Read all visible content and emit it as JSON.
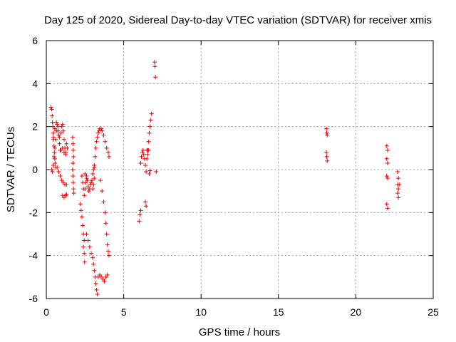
{
  "chart_data": {
    "type": "scatter",
    "title": "Day 125 of 2020, Sidereal Day-to-day VTEC variation (SDTVAR) for receiver xmis",
    "xlabel": "GPS time / hours",
    "ylabel": "SDTVAR / TECUs",
    "xlim": [
      0,
      25
    ],
    "ylim": [
      -6,
      6
    ],
    "xticks": [
      0,
      5,
      10,
      15,
      20,
      25
    ],
    "yticks": [
      -6,
      -4,
      -2,
      0,
      2,
      4,
      6
    ],
    "xtick_labels": [
      "0",
      "5",
      "10",
      "15",
      "20",
      "25"
    ],
    "ytick_labels": [
      "-6",
      "-4",
      "-2",
      "0",
      "2",
      "4",
      "6"
    ],
    "grid": true,
    "marker": "plus",
    "color": "#ee0000",
    "series": [
      {
        "name": "SDTVAR xmis",
        "points": [
          [
            0.3,
            2.9
          ],
          [
            0.35,
            2.8
          ],
          [
            0.38,
            2.5
          ],
          [
            0.4,
            2.2
          ],
          [
            0.42,
            2.0
          ],
          [
            0.45,
            1.7
          ],
          [
            0.47,
            1.4
          ],
          [
            0.5,
            1.1
          ],
          [
            0.52,
            0.8
          ],
          [
            0.55,
            0.5
          ],
          [
            0.57,
            0.3
          ],
          [
            0.6,
            0.1
          ],
          [
            0.35,
            0.0
          ],
          [
            0.4,
            -0.1
          ],
          [
            0.45,
            0.2
          ],
          [
            0.5,
            0.6
          ],
          [
            0.55,
            1.0
          ],
          [
            0.6,
            1.4
          ],
          [
            0.65,
            1.8
          ],
          [
            0.7,
            2.1
          ],
          [
            0.75,
            2.0
          ],
          [
            0.8,
            1.6
          ],
          [
            0.85,
            1.2
          ],
          [
            0.9,
            0.9
          ],
          [
            0.45,
            1.5
          ],
          [
            0.55,
            1.9
          ],
          [
            0.65,
            2.2
          ],
          [
            0.75,
            1.8
          ],
          [
            0.85,
            1.5
          ],
          [
            0.95,
            1.7
          ],
          [
            1.0,
            2.0
          ],
          [
            1.05,
            2.1
          ],
          [
            1.1,
            1.8
          ],
          [
            1.15,
            1.4
          ],
          [
            1.2,
            1.0
          ],
          [
            1.25,
            0.8
          ],
          [
            0.7,
            0.1
          ],
          [
            0.8,
            -0.1
          ],
          [
            0.9,
            -0.3
          ],
          [
            1.0,
            -0.5
          ],
          [
            1.1,
            -0.6
          ],
          [
            1.2,
            -0.7
          ],
          [
            1.3,
            -0.7
          ],
          [
            1.05,
            -1.2
          ],
          [
            1.15,
            -1.3
          ],
          [
            1.25,
            -1.2
          ],
          [
            1.3,
            -1.15
          ],
          [
            0.95,
            0.9
          ],
          [
            1.05,
            1.0
          ],
          [
            1.15,
            0.8
          ],
          [
            1.25,
            0.7
          ],
          [
            1.3,
            1.2
          ],
          [
            1.35,
            1.0
          ],
          [
            1.7,
            1.5
          ],
          [
            1.72,
            1.2
          ],
          [
            1.74,
            0.9
          ],
          [
            1.76,
            0.6
          ],
          [
            1.72,
            0.3
          ],
          [
            1.7,
            0.0
          ],
          [
            1.72,
            -0.3
          ],
          [
            1.74,
            -0.6
          ],
          [
            1.76,
            -0.9
          ],
          [
            1.78,
            -1.1
          ],
          [
            2.2,
            -1.6
          ],
          [
            2.25,
            -1.9
          ],
          [
            2.3,
            -2.2
          ],
          [
            2.35,
            -2.6
          ],
          [
            2.4,
            -3.0
          ],
          [
            2.45,
            -3.3
          ],
          [
            2.4,
            -3.6
          ],
          [
            2.45,
            -3.9
          ],
          [
            2.48,
            -4.3
          ],
          [
            2.3,
            -0.3
          ],
          [
            2.35,
            -0.6
          ],
          [
            2.4,
            -0.9
          ],
          [
            2.45,
            -1.2
          ],
          [
            2.5,
            -0.9
          ],
          [
            2.55,
            -0.6
          ],
          [
            2.6,
            -0.3
          ],
          [
            2.65,
            -0.5
          ],
          [
            2.7,
            -0.8
          ],
          [
            2.75,
            -1.0
          ],
          [
            2.8,
            -0.9
          ],
          [
            2.85,
            -0.7
          ],
          [
            2.9,
            -0.6
          ],
          [
            2.95,
            -0.5
          ],
          [
            3.0,
            -0.2
          ],
          [
            3.05,
            0.0
          ],
          [
            3.1,
            0.1
          ],
          [
            3.0,
            -0.9
          ],
          [
            3.05,
            -0.7
          ],
          [
            3.1,
            -0.4
          ],
          [
            2.5,
            -0.2
          ],
          [
            2.6,
            -0.4
          ],
          [
            2.6,
            -3.0
          ],
          [
            2.7,
            -3.3
          ],
          [
            2.8,
            -3.6
          ],
          [
            2.9,
            -3.9
          ],
          [
            3.0,
            -4.1
          ],
          [
            3.05,
            -4.4
          ],
          [
            3.1,
            -4.7
          ],
          [
            3.15,
            -5.0
          ],
          [
            3.2,
            -5.3
          ],
          [
            3.25,
            -5.6
          ],
          [
            3.3,
            -5.8
          ],
          [
            3.35,
            -5.0
          ],
          [
            3.45,
            -4.9
          ],
          [
            3.55,
            -5.0
          ],
          [
            3.65,
            -5.1
          ],
          [
            3.75,
            -5.2
          ],
          [
            3.85,
            -5.0
          ],
          [
            3.95,
            -4.9
          ],
          [
            3.1,
            0.2
          ],
          [
            3.15,
            0.6
          ],
          [
            3.2,
            1.0
          ],
          [
            3.25,
            1.3
          ],
          [
            3.3,
            1.5
          ],
          [
            3.35,
            1.7
          ],
          [
            3.4,
            1.8
          ],
          [
            3.45,
            1.9
          ],
          [
            3.55,
            1.9
          ],
          [
            3.6,
            1.8
          ],
          [
            3.7,
            1.6
          ],
          [
            3.8,
            1.3
          ],
          [
            3.9,
            1.0
          ],
          [
            4.0,
            0.8
          ],
          [
            4.05,
            0.6
          ],
          [
            3.5,
            -0.5
          ],
          [
            3.6,
            -1.0
          ],
          [
            3.7,
            -1.5
          ],
          [
            3.8,
            -2.0
          ],
          [
            3.85,
            -2.5
          ],
          [
            3.9,
            -3.0
          ],
          [
            3.95,
            -3.5
          ],
          [
            4.0,
            -3.8
          ],
          [
            4.05,
            -4.0
          ],
          [
            6.0,
            -2.4
          ],
          [
            6.05,
            -2.1
          ],
          [
            6.1,
            -1.9
          ],
          [
            6.1,
            0.3
          ],
          [
            6.15,
            0.6
          ],
          [
            6.2,
            0.8
          ],
          [
            6.25,
            0.9
          ],
          [
            6.3,
            0.7
          ],
          [
            6.35,
            0.5
          ],
          [
            6.4,
            0.2
          ],
          [
            6.45,
            -0.1
          ],
          [
            6.5,
            0.5
          ],
          [
            6.55,
            0.9
          ],
          [
            6.6,
            1.3
          ],
          [
            6.65,
            1.7
          ],
          [
            6.7,
            2.0
          ],
          [
            6.75,
            2.3
          ],
          [
            6.8,
            2.6
          ],
          [
            6.5,
            0.9
          ],
          [
            6.55,
            0.7
          ],
          [
            6.6,
            0.9
          ],
          [
            6.65,
            -0.2
          ],
          [
            6.7,
            -0.05
          ],
          [
            6.4,
            -1.5
          ],
          [
            6.45,
            -1.7
          ],
          [
            7.0,
            5.0
          ],
          [
            7.02,
            4.8
          ],
          [
            7.05,
            4.3
          ],
          [
            7.1,
            -0.1
          ],
          [
            18.1,
            1.9
          ],
          [
            18.12,
            1.7
          ],
          [
            18.15,
            1.6
          ],
          [
            18.1,
            0.8
          ],
          [
            18.12,
            0.6
          ],
          [
            18.15,
            0.4
          ],
          [
            22.0,
            1.1
          ],
          [
            22.05,
            0.9
          ],
          [
            22.0,
            0.5
          ],
          [
            22.05,
            0.3
          ],
          [
            22.0,
            -0.3
          ],
          [
            22.05,
            -0.4
          ],
          [
            22.0,
            -1.6
          ],
          [
            22.05,
            -1.8
          ],
          [
            22.7,
            -0.1
          ],
          [
            22.75,
            -0.4
          ],
          [
            22.7,
            -0.7
          ],
          [
            22.75,
            -0.9
          ],
          [
            22.7,
            -1.1
          ],
          [
            22.75,
            -1.3
          ],
          [
            22.8,
            -0.7
          ]
        ]
      }
    ]
  }
}
